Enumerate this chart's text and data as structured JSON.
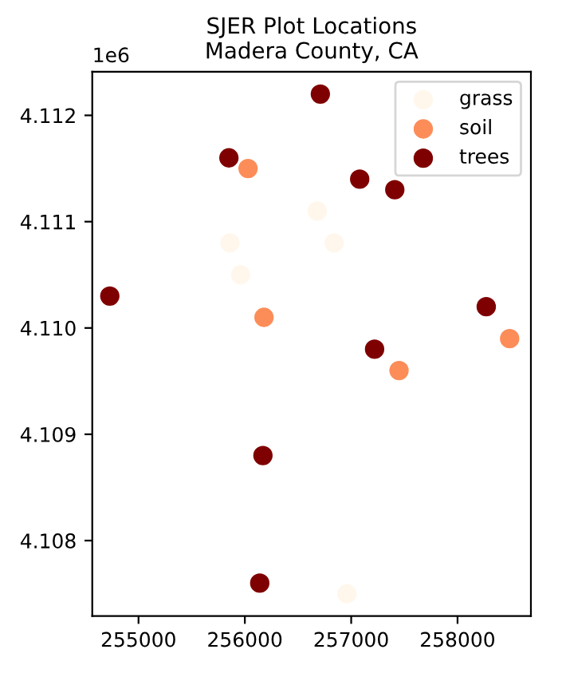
{
  "chart_data": {
    "type": "scatter",
    "title": "SJER Plot Locations\nMadera County, CA",
    "annotations": [
      "1e6"
    ],
    "marker": "circle",
    "legend": "top right",
    "grid": false,
    "xlim": [
      254565,
      258690
    ],
    "ylim": [
      4.10729,
      4.11241
    ],
    "xticks": [
      255000,
      256000,
      257000,
      258000
    ],
    "yticks": [
      4.108,
      4.109,
      {
        "value": 4.11,
        "label": "4.110"
      },
      4.111,
      4.112
    ],
    "series": [
      {
        "name": "grass",
        "color": "#fff7ec",
        "x": [
          256680,
          255860,
          255960,
          256840,
          256960
        ],
        "values": [
          4.1111,
          4.1108,
          4.1105,
          4.1108,
          4.1075
        ]
      },
      {
        "name": "soil",
        "color": "#fc8d59",
        "x": [
          256030,
          256180,
          257450,
          258490
        ],
        "values": [
          4.1115,
          4.1101,
          4.1096,
          4.1099
        ]
      },
      {
        "name": "trees",
        "color": "#7f0000",
        "x": [
          256710,
          255850,
          257080,
          257410,
          254730,
          258270,
          257220,
          256170,
          256140
        ],
        "values": [
          4.1122,
          4.1116,
          4.1114,
          4.1113,
          4.1103,
          4.1102,
          4.1098,
          4.1088,
          4.1076
        ]
      }
    ]
  }
}
